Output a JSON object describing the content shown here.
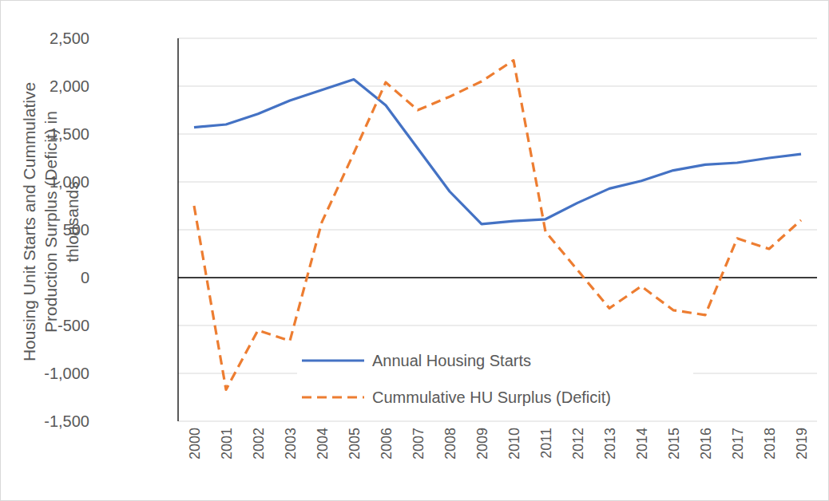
{
  "chart_data": {
    "type": "line",
    "y_label": "Housing Unit Starts and Cummulative Production Surplus (Deficit) in thlousands",
    "categories": [
      "2000",
      "2001",
      "2002",
      "2003",
      "2004",
      "2005",
      "2006",
      "2007",
      "2008",
      "2009",
      "2010",
      "2011",
      "2012",
      "2013",
      "2014",
      "2015",
      "2016",
      "2017",
      "2018",
      "2019"
    ],
    "series": [
      {
        "name": "Annual Housing Starts",
        "color": "#4472c4",
        "line_style": "solid",
        "values": [
          1570,
          1600,
          1710,
          1850,
          1960,
          2070,
          1800,
          1350,
          900,
          560,
          590,
          610,
          780,
          930,
          1010,
          1120,
          1180,
          1200,
          1250,
          1290
        ]
      },
      {
        "name": "Cummulative HU Surplus (Deficit)",
        "color": "#ed7d31",
        "line_style": "dashed",
        "values": [
          750,
          -1170,
          -550,
          -660,
          580,
          1300,
          2040,
          1750,
          1890,
          2050,
          2270,
          480,
          80,
          -320,
          -90,
          -340,
          -390,
          410,
          300,
          600
        ]
      }
    ],
    "ylim": [
      -1500,
      2500
    ],
    "yticks": [
      {
        "value": -1500,
        "label": "-1,500"
      },
      {
        "value": -1000,
        "label": "-1,000"
      },
      -500,
      0,
      500,
      {
        "value": 1000,
        "label": "1,000"
      },
      {
        "value": 1500,
        "label": "1,500"
      },
      {
        "value": 2000,
        "label": "2,000"
      },
      {
        "value": 2500,
        "label": "2,500"
      }
    ],
    "grid": true,
    "legend": "bottom"
  }
}
